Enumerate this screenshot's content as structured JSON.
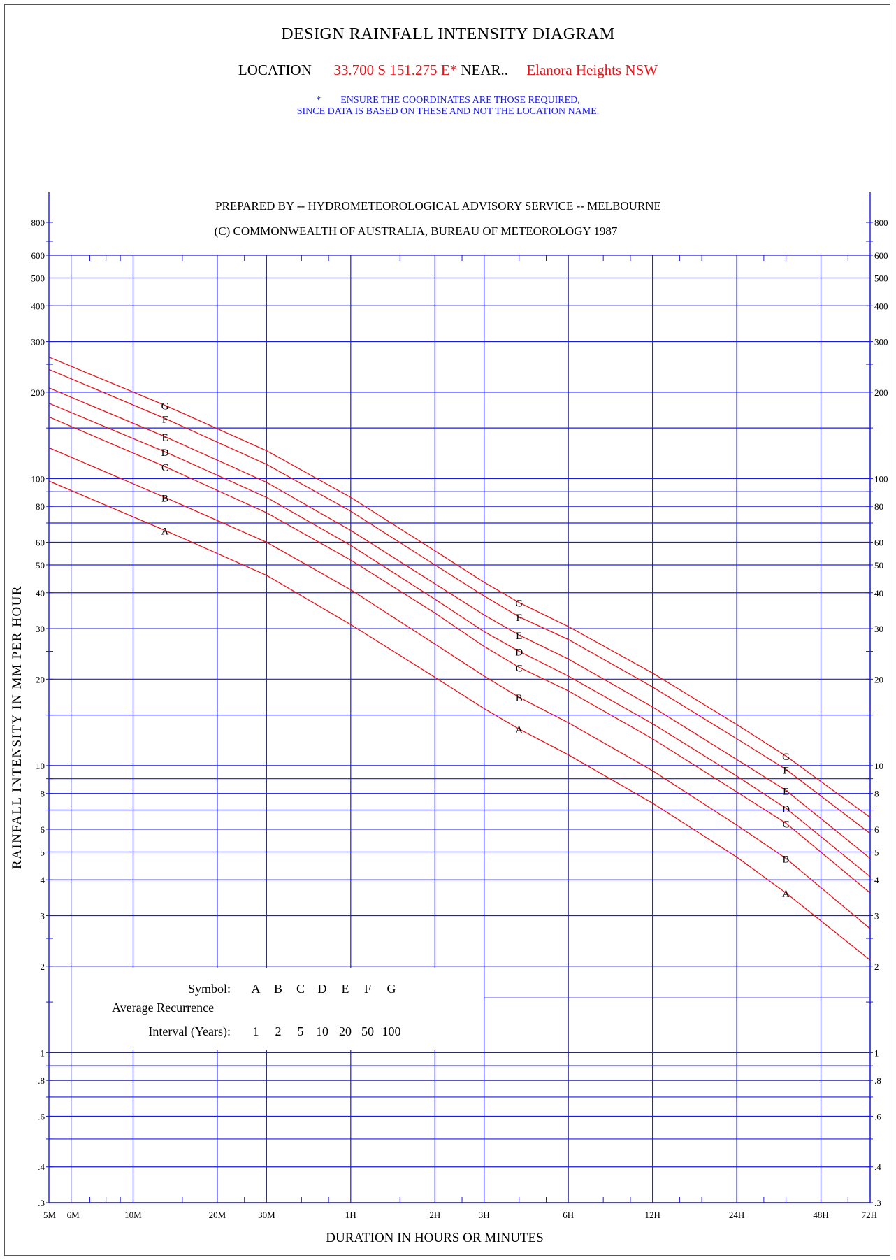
{
  "header": {
    "title": "DESIGN RAINFALL INTENSITY DIAGRAM",
    "location_label": "LOCATION",
    "coordinates": "33.700 S 151.275 E*",
    "near_label": "NEAR..",
    "place_name": "Elanora Heights  NSW",
    "note_star": "*",
    "note_line1": "ENSURE THE COORDINATES ARE THOSE REQUIRED,",
    "note_line2": "SINCE DATA IS BASED ON THESE AND NOT THE LOCATION NAME."
  },
  "chart_data": {
    "type": "line",
    "prepared_by": "PREPARED BY -- HYDROMETEOROLOGICAL ADVISORY SERVICE -- MELBOURNE",
    "copyright": "(C) COMMONWEALTH OF AUSTRALIA, BUREAU OF METEOROLOGY 1987",
    "xlabel": "DURATION IN HOURS OR MINUTES",
    "ylabel": "RAINFALL INTENSITY IN MM PER HOUR",
    "x_scale": "log",
    "y_scale": "log",
    "x_unit": "minutes",
    "xlim": [
      5,
      4320
    ],
    "ylim": [
      0.3,
      1000
    ],
    "x_ticks": [
      {
        "value": 5,
        "label": "5M"
      },
      {
        "value": 6,
        "label": "6M"
      },
      {
        "value": 10,
        "label": "10M"
      },
      {
        "value": 20,
        "label": "20M"
      },
      {
        "value": 30,
        "label": "30M"
      },
      {
        "value": 60,
        "label": "1H"
      },
      {
        "value": 120,
        "label": "2H"
      },
      {
        "value": 180,
        "label": "3H"
      },
      {
        "value": 360,
        "label": "6H"
      },
      {
        "value": 720,
        "label": "12H"
      },
      {
        "value": 1440,
        "label": "24H"
      },
      {
        "value": 2880,
        "label": "48H"
      },
      {
        "value": 4320,
        "label": "72H"
      }
    ],
    "y_ticks": [
      {
        "value": 0.3,
        "label": ".3"
      },
      {
        "value": 0.4,
        "label": ".4"
      },
      {
        "value": 0.6,
        "label": ".6"
      },
      {
        "value": 0.8,
        "label": ".8"
      },
      {
        "value": 1,
        "label": "1"
      },
      {
        "value": 2,
        "label": "2"
      },
      {
        "value": 3,
        "label": "3"
      },
      {
        "value": 4,
        "label": "4"
      },
      {
        "value": 5,
        "label": "5"
      },
      {
        "value": 6,
        "label": "6"
      },
      {
        "value": 8,
        "label": "8"
      },
      {
        "value": 10,
        "label": "10"
      },
      {
        "value": 20,
        "label": "20"
      },
      {
        "value": 30,
        "label": "30"
      },
      {
        "value": 40,
        "label": "40"
      },
      {
        "value": 50,
        "label": "50"
      },
      {
        "value": 60,
        "label": "60"
      },
      {
        "value": 80,
        "label": "80"
      },
      {
        "value": 100,
        "label": "100"
      },
      {
        "value": 200,
        "label": "200"
      },
      {
        "value": 300,
        "label": "300"
      },
      {
        "value": 400,
        "label": "400"
      },
      {
        "value": 500,
        "label": "500"
      },
      {
        "value": 600,
        "label": "600"
      },
      {
        "value": 800,
        "label": "800"
      }
    ],
    "grid_y_values": [
      0.3,
      0.4,
      0.5,
      0.6,
      0.7,
      0.8,
      0.9,
      1,
      2,
      3,
      4,
      5,
      6,
      7,
      8,
      9,
      10,
      15,
      20,
      30,
      40,
      50,
      60,
      70,
      80,
      90,
      100,
      150,
      200,
      300,
      400,
      500,
      600
    ],
    "grid_x_values": [
      6,
      10,
      20,
      30,
      60,
      120,
      180,
      360,
      720,
      1440,
      2880,
      4320
    ],
    "label_durations": [
      13,
      240,
      2160
    ],
    "series": [
      {
        "name": "A",
        "ari_years": "1",
        "points": [
          [
            5,
            98
          ],
          [
            13,
            66
          ],
          [
            30,
            46
          ],
          [
            60,
            31
          ],
          [
            120,
            20.3
          ],
          [
            180,
            15.8
          ],
          [
            240,
            13.4
          ],
          [
            360,
            10.9
          ],
          [
            720,
            7.4
          ],
          [
            1440,
            4.8
          ],
          [
            2160,
            3.6
          ],
          [
            4320,
            2.1
          ]
        ]
      },
      {
        "name": "B",
        "ari_years": "2",
        "points": [
          [
            5,
            128
          ],
          [
            13,
            86
          ],
          [
            30,
            60
          ],
          [
            60,
            41
          ],
          [
            120,
            26.5
          ],
          [
            180,
            20.5
          ],
          [
            240,
            17.3
          ],
          [
            360,
            14.1
          ],
          [
            720,
            9.6
          ],
          [
            1440,
            6.2
          ],
          [
            2160,
            4.75
          ],
          [
            4320,
            2.7
          ]
        ]
      },
      {
        "name": "C",
        "ari_years": "5",
        "points": [
          [
            5,
            164
          ],
          [
            13,
            110
          ],
          [
            30,
            76
          ],
          [
            60,
            52
          ],
          [
            120,
            34
          ],
          [
            180,
            26
          ],
          [
            240,
            22
          ],
          [
            360,
            18.2
          ],
          [
            720,
            12.4
          ],
          [
            1440,
            8.1
          ],
          [
            2160,
            6.3
          ],
          [
            4320,
            3.6
          ]
        ]
      },
      {
        "name": "D",
        "ari_years": "10",
        "points": [
          [
            5,
            183
          ],
          [
            13,
            124
          ],
          [
            30,
            86
          ],
          [
            60,
            58.5
          ],
          [
            120,
            38
          ],
          [
            180,
            29.3
          ],
          [
            240,
            25
          ],
          [
            360,
            20.5
          ],
          [
            720,
            14
          ],
          [
            1440,
            9.2
          ],
          [
            2160,
            7.1
          ],
          [
            4320,
            4.1
          ]
        ]
      },
      {
        "name": "E",
        "ari_years": "20",
        "points": [
          [
            5,
            207
          ],
          [
            13,
            140
          ],
          [
            30,
            97
          ],
          [
            60,
            66
          ],
          [
            120,
            43
          ],
          [
            180,
            33.5
          ],
          [
            240,
            28.5
          ],
          [
            360,
            23.5
          ],
          [
            720,
            16
          ],
          [
            1440,
            10.5
          ],
          [
            2160,
            8.2
          ],
          [
            4320,
            4.75
          ]
        ]
      },
      {
        "name": "F",
        "ari_years": "50",
        "points": [
          [
            5,
            240
          ],
          [
            13,
            162
          ],
          [
            30,
            112
          ],
          [
            60,
            77
          ],
          [
            120,
            50
          ],
          [
            180,
            39
          ],
          [
            240,
            33
          ],
          [
            360,
            27.5
          ],
          [
            720,
            18.8
          ],
          [
            1440,
            12.4
          ],
          [
            2160,
            9.7
          ],
          [
            4320,
            5.8
          ]
        ]
      },
      {
        "name": "G",
        "ari_years": "100",
        "points": [
          [
            5,
            265
          ],
          [
            13,
            180
          ],
          [
            30,
            125
          ],
          [
            60,
            86
          ],
          [
            120,
            56
          ],
          [
            180,
            43.5
          ],
          [
            240,
            37
          ],
          [
            360,
            30.5
          ],
          [
            720,
            21
          ],
          [
            1440,
            13.9
          ],
          [
            2160,
            10.8
          ],
          [
            4320,
            6.6
          ]
        ]
      }
    ],
    "legend": {
      "symbol_label": "Symbol:",
      "symbols": [
        "A",
        "B",
        "C",
        "D",
        "E",
        "F",
        "G"
      ],
      "ari_label_line1": "Average Recurrence",
      "ari_label_line2": "Interval (Years):",
      "intervals": [
        "1",
        "2",
        "5",
        "10",
        "20",
        "50",
        "100"
      ],
      "placement": "bottom-left"
    },
    "colors": {
      "grid": "#1a1ae6",
      "curves": "#e8141a",
      "axis_tick_major": "#1a1ae6"
    }
  }
}
